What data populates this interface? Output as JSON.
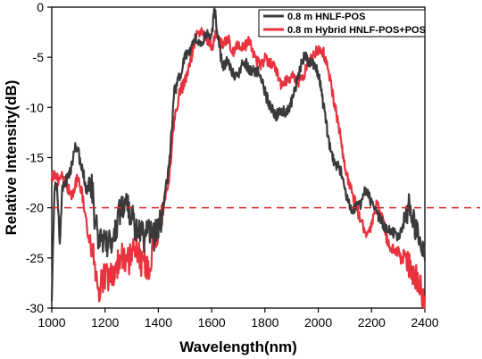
{
  "chart_data": {
    "type": "line",
    "title": "",
    "xlabel": "Wavelength(nm)",
    "ylabel": "Relative Intensity(dB)",
    "xlim": [
      1000,
      2400
    ],
    "ylim": [
      -30,
      0
    ],
    "xticks": [
      1000,
      1200,
      1400,
      1600,
      1800,
      2000,
      2200,
      2400
    ],
    "yticks": [
      0,
      -5,
      -10,
      -15,
      -20,
      -25,
      -30
    ],
    "grid": false,
    "legend_position": "top-right",
    "reference_line": {
      "y": -20,
      "color": "#d62728",
      "style": "dashed"
    },
    "series": [
      {
        "name": "0.8 m HNLF-POS",
        "color": "#3a3a3a",
        "x": [
          1000,
          1010,
          1020,
          1030,
          1040,
          1050,
          1060,
          1070,
          1080,
          1090,
          1100,
          1110,
          1120,
          1130,
          1140,
          1150,
          1160,
          1170,
          1180,
          1190,
          1200,
          1220,
          1240,
          1260,
          1280,
          1300,
          1320,
          1340,
          1360,
          1380,
          1400,
          1420,
          1440,
          1460,
          1480,
          1500,
          1520,
          1540,
          1560,
          1580,
          1600,
          1610,
          1620,
          1630,
          1640,
          1660,
          1680,
          1700,
          1720,
          1740,
          1760,
          1780,
          1800,
          1820,
          1840,
          1860,
          1880,
          1900,
          1920,
          1940,
          1950,
          1960,
          1980,
          2000,
          2020,
          2040,
          2060,
          2080,
          2100,
          2120,
          2140,
          2160,
          2180,
          2200,
          2220,
          2240,
          2260,
          2280,
          2300,
          2320,
          2340,
          2360,
          2380,
          2400
        ],
        "values": [
          -29,
          -18,
          -17.5,
          -23.5,
          -18,
          -17.5,
          -17,
          -16.5,
          -15,
          -13.8,
          -14.5,
          -16,
          -16.5,
          -18.5,
          -17.5,
          -18,
          -20.5,
          -22.5,
          -23.5,
          -23,
          -23.5,
          -23.5,
          -22.5,
          -19.5,
          -19.8,
          -20.5,
          -22.5,
          -23,
          -22.5,
          -22.8,
          -22.5,
          -19.5,
          -16,
          -8.5,
          -7,
          -5,
          -4.2,
          -3,
          -3.8,
          -2.8,
          -3.2,
          -0.1,
          -2,
          -4,
          -6,
          -5.2,
          -6.5,
          -7,
          -5.3,
          -6.2,
          -6.3,
          -6.5,
          -8.5,
          -10,
          -10.8,
          -10.5,
          -10.3,
          -9.5,
          -7.5,
          -5.3,
          -4.8,
          -5.3,
          -5.5,
          -6.6,
          -9.8,
          -13.5,
          -15.5,
          -16,
          -18.3,
          -20,
          -20,
          -19.8,
          -18,
          -19.5,
          -20.5,
          -21.5,
          -22.3,
          -22.5,
          -23,
          -21.5,
          -20,
          -21.5,
          -23.5,
          -25
        ]
      },
      {
        "name": "0.8 m Hybrid HNLF-POS+POS",
        "color": "#e8333f",
        "x": [
          1000,
          1010,
          1020,
          1030,
          1040,
          1050,
          1060,
          1070,
          1080,
          1090,
          1100,
          1110,
          1120,
          1130,
          1140,
          1150,
          1160,
          1170,
          1180,
          1190,
          1200,
          1220,
          1240,
          1260,
          1280,
          1300,
          1320,
          1340,
          1360,
          1380,
          1400,
          1420,
          1440,
          1460,
          1480,
          1500,
          1520,
          1540,
          1560,
          1580,
          1600,
          1620,
          1640,
          1660,
          1680,
          1700,
          1720,
          1740,
          1760,
          1780,
          1800,
          1820,
          1840,
          1860,
          1880,
          1900,
          1920,
          1940,
          1960,
          1980,
          2000,
          2020,
          2040,
          2060,
          2080,
          2100,
          2120,
          2140,
          2160,
          2180,
          2200,
          2220,
          2240,
          2260,
          2280,
          2300,
          2320,
          2340,
          2360,
          2380,
          2390,
          2400
        ],
        "values": [
          -17,
          -16.5,
          -17,
          -17.5,
          -16.8,
          -17.5,
          -18,
          -18.5,
          -19,
          -17.5,
          -17,
          -18,
          -19.5,
          -21.5,
          -23,
          -24,
          -25,
          -27.5,
          -28,
          -27.5,
          -27,
          -26.5,
          -26,
          -25,
          -25.5,
          -25,
          -24,
          -25.5,
          -26,
          -24,
          -22,
          -19.5,
          -17,
          -11,
          -8.5,
          -7.5,
          -5.5,
          -3,
          -2.5,
          -3,
          -4,
          -2.5,
          -4,
          -3,
          -4.5,
          -3.5,
          -4,
          -3.3,
          -5,
          -5.8,
          -5.2,
          -5.5,
          -6.2,
          -7.8,
          -7.3,
          -6.8,
          -7.4,
          -7.2,
          -5.8,
          -4.8,
          -4.2,
          -4.6,
          -6.5,
          -9.5,
          -12.5,
          -16,
          -18,
          -19.5,
          -21.5,
          -22.5,
          -22,
          -19.5,
          -21,
          -23.5,
          -24,
          -24.5,
          -25.5,
          -25.8,
          -26.5,
          -27.5,
          -28.5,
          -30
        ]
      }
    ]
  }
}
